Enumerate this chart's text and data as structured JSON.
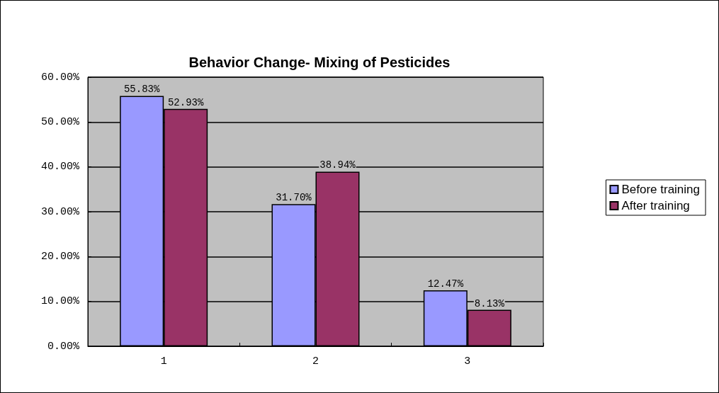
{
  "chart_data": {
    "type": "bar",
    "title": "Behavior Change- Mixing of Pesticides",
    "categories": [
      "1",
      "2",
      "3"
    ],
    "series": [
      {
        "name": "Before training",
        "color": "#9999ff",
        "values": [
          55.83,
          31.7,
          12.47
        ],
        "value_labels": [
          "55.83%",
          "31.70%",
          "12.47%"
        ]
      },
      {
        "name": "After training",
        "color": "#993366",
        "values": [
          52.93,
          38.94,
          8.13
        ],
        "value_labels": [
          "52.93%",
          "38.94%",
          "8.13%"
        ]
      }
    ],
    "ylim": [
      0,
      60
    ],
    "yticks": [
      {
        "value": 0,
        "label": "0.00%"
      },
      {
        "value": 10,
        "label": "10.00%"
      },
      {
        "value": 20,
        "label": "20.00%"
      },
      {
        "value": 30,
        "label": "30.00%"
      },
      {
        "value": 40,
        "label": "40.00%"
      },
      {
        "value": 50,
        "label": "50.00%"
      },
      {
        "value": 60,
        "label": "60.00%"
      }
    ],
    "grid": "y",
    "legend": "right"
  }
}
